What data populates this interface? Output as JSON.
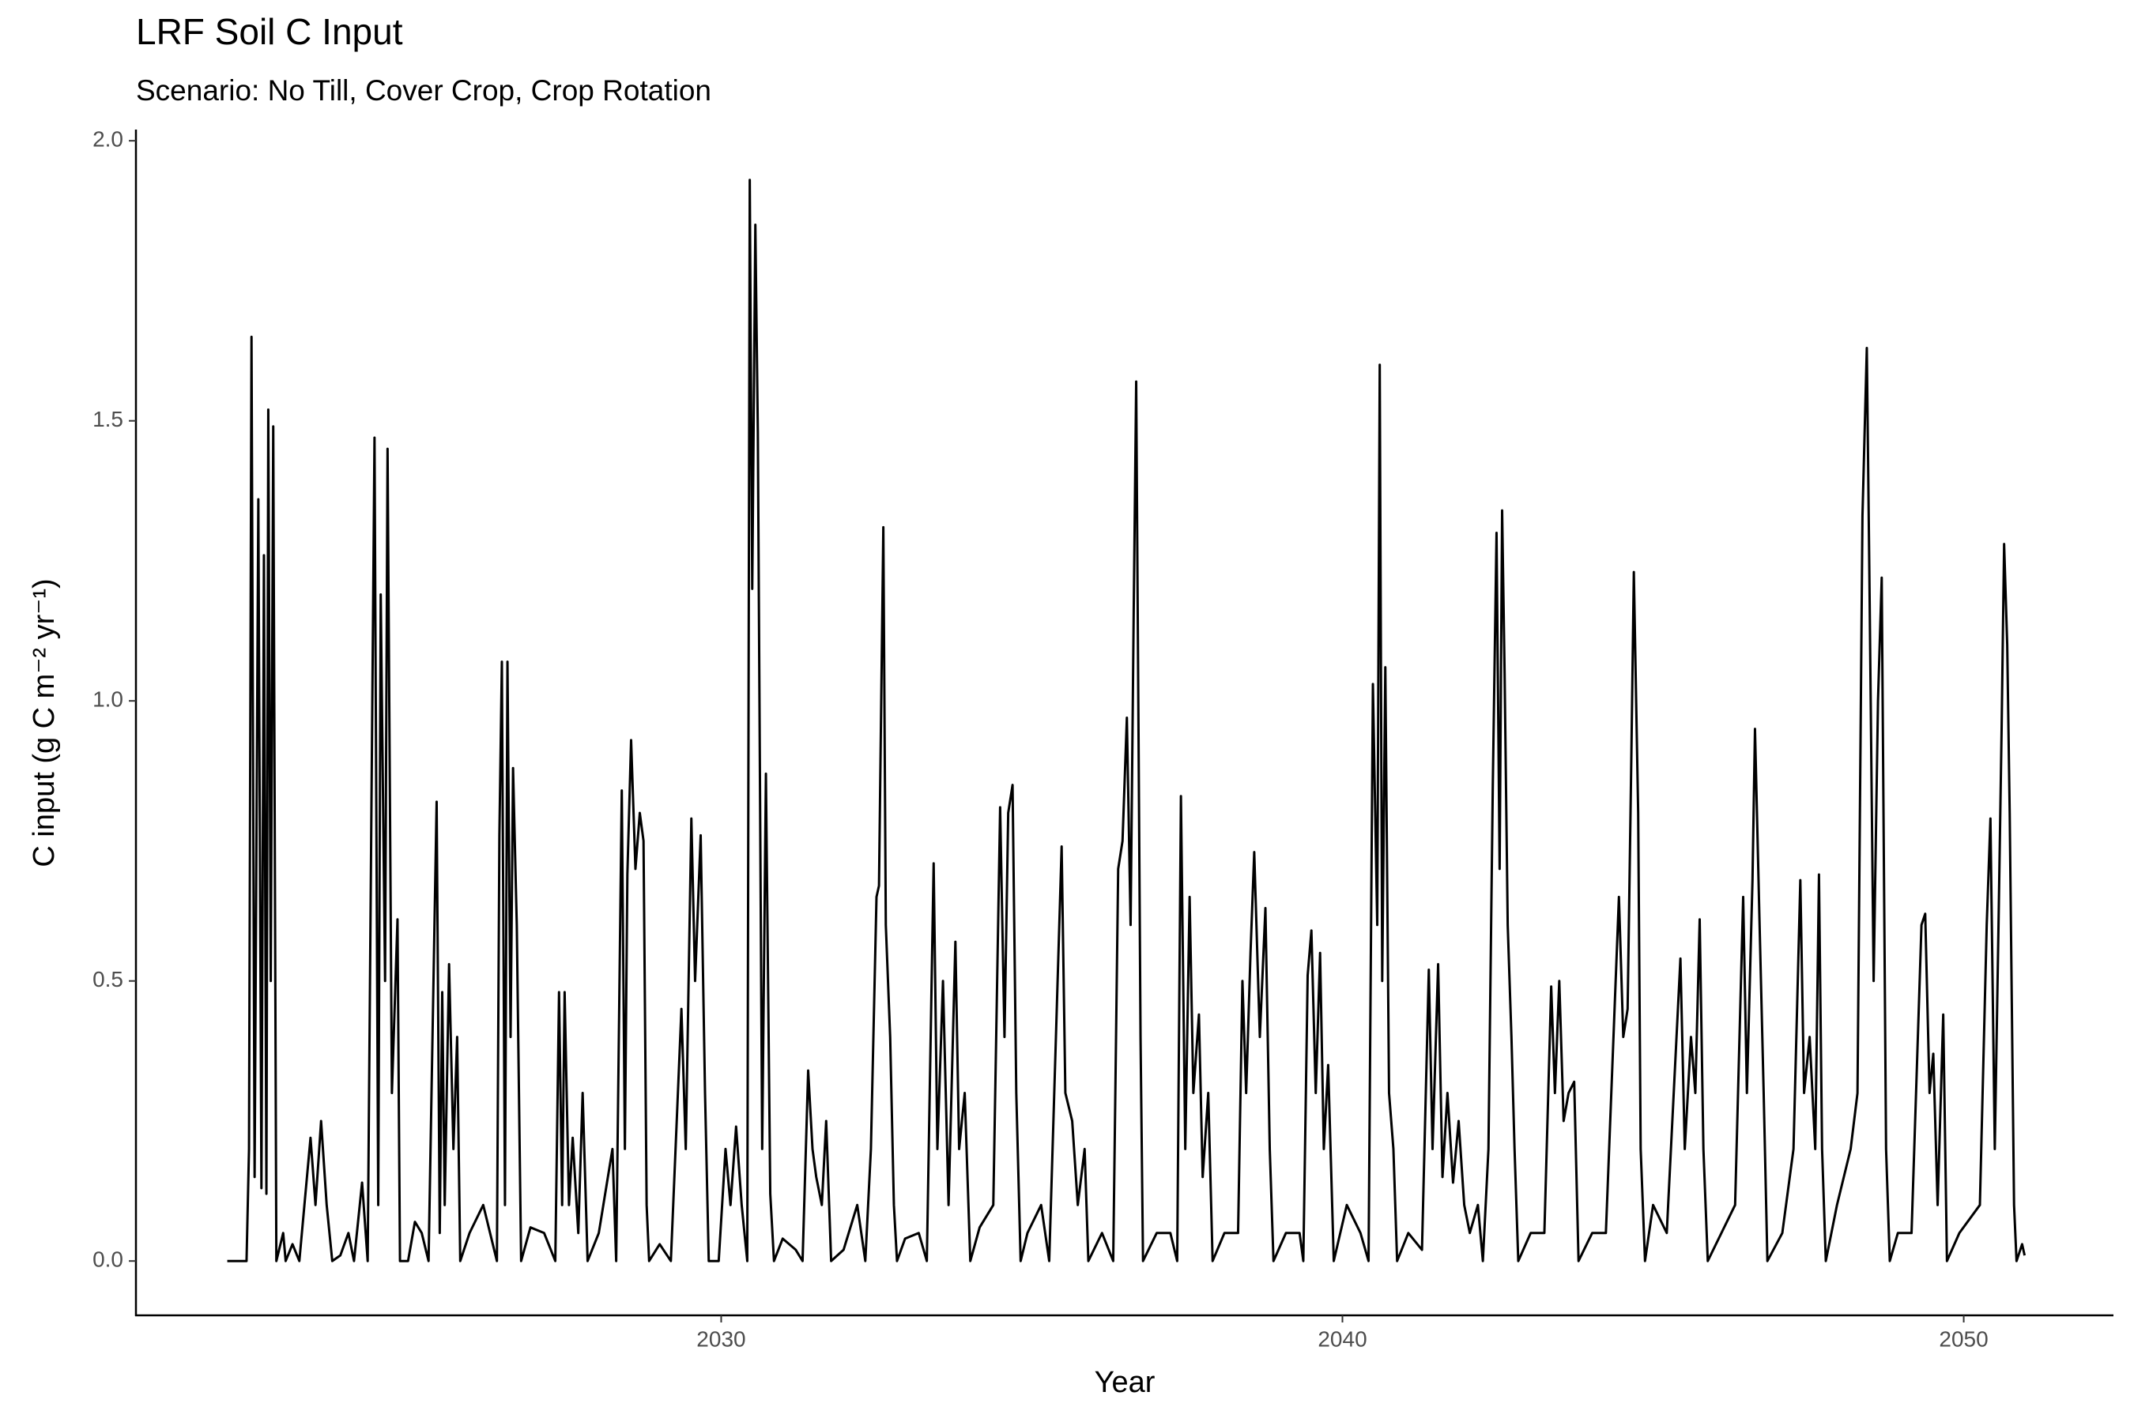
{
  "chart_data": {
    "type": "line",
    "title": "LRF Soil C Input",
    "subtitle": "Scenario: No Till, Cover Crop, Crop Rotation",
    "x_label": "Year",
    "y_label": "C input (g C m⁻² yr⁻¹)",
    "color": "#000000",
    "grid": false,
    "xlim": [
      2020.58,
      2052.41
    ],
    "ylim": [
      -0.097,
      2.02
    ],
    "xticks": [
      2030,
      2040,
      2050
    ],
    "yticks": [
      {
        "value": 0,
        "label": "0.0"
      },
      0.5,
      {
        "value": 1,
        "label": "1.0"
      },
      1.5,
      {
        "value": 2,
        "label": "2.0"
      }
    ],
    "x": [
      2022.05,
      2022.36,
      2022.4,
      2022.44,
      2022.49,
      2022.55,
      2022.6,
      2022.64,
      2022.68,
      2022.71,
      2022.75,
      2022.79,
      2022.84,
      2022.95,
      2022.99,
      2023.1,
      2023.21,
      2023.39,
      2023.47,
      2023.56,
      2023.65,
      2023.74,
      2023.87,
      2024.0,
      2024.09,
      2024.22,
      2024.31,
      2024.42,
      2024.48,
      2024.52,
      2024.59,
      2024.63,
      2024.7,
      2024.79,
      2024.83,
      2024.96,
      2025.07,
      2025.18,
      2025.29,
      2025.42,
      2025.47,
      2025.51,
      2025.55,
      2025.62,
      2025.69,
      2025.75,
      2025.8,
      2025.95,
      2026.17,
      2026.28,
      2026.39,
      2026.43,
      2026.47,
      2026.52,
      2026.56,
      2026.61,
      2026.65,
      2026.71,
      2026.78,
      2026.93,
      2027.15,
      2027.33,
      2027.39,
      2027.44,
      2027.48,
      2027.55,
      2027.61,
      2027.7,
      2027.77,
      2027.85,
      2028.03,
      2028.25,
      2028.31,
      2028.4,
      2028.45,
      2028.49,
      2028.55,
      2028.62,
      2028.69,
      2028.75,
      2028.8,
      2028.84,
      2029.01,
      2029.19,
      2029.36,
      2029.43,
      2029.52,
      2029.58,
      2029.67,
      2029.74,
      2029.8,
      2029.96,
      2030.07,
      2030.15,
      2030.24,
      2030.33,
      2030.42,
      2030.46,
      2030.5,
      2030.55,
      2030.59,
      2030.66,
      2030.72,
      2030.79,
      2030.85,
      2030.99,
      2031.2,
      2031.31,
      2031.4,
      2031.47,
      2031.53,
      2031.62,
      2031.69,
      2031.77,
      2031.97,
      2032.19,
      2032.32,
      2032.41,
      2032.5,
      2032.54,
      2032.61,
      2032.65,
      2032.72,
      2032.78,
      2032.83,
      2032.96,
      2033.18,
      2033.31,
      2033.42,
      2033.48,
      2033.57,
      2033.66,
      2033.77,
      2033.83,
      2033.92,
      2034.01,
      2034.16,
      2034.38,
      2034.49,
      2034.56,
      2034.62,
      2034.69,
      2034.75,
      2034.82,
      2034.93,
      2035.15,
      2035.28,
      2035.48,
      2035.54,
      2035.65,
      2035.74,
      2035.85,
      2035.91,
      2036.13,
      2036.31,
      2036.39,
      2036.46,
      2036.53,
      2036.59,
      2036.64,
      2036.68,
      2036.75,
      2036.79,
      2037.01,
      2037.23,
      2037.34,
      2037.4,
      2037.47,
      2037.54,
      2037.6,
      2037.69,
      2037.75,
      2037.84,
      2037.91,
      2038.1,
      2038.32,
      2038.39,
      2038.45,
      2038.52,
      2038.58,
      2038.67,
      2038.76,
      2038.83,
      2038.89,
      2039.09,
      2039.31,
      2039.37,
      2039.44,
      2039.5,
      2039.57,
      2039.64,
      2039.7,
      2039.77,
      2039.86,
      2040.07,
      2040.29,
      2040.42,
      2040.49,
      2040.56,
      2040.6,
      2040.64,
      2040.69,
      2040.75,
      2040.82,
      2040.88,
      2041.06,
      2041.28,
      2041.39,
      2041.45,
      2041.54,
      2041.61,
      2041.69,
      2041.78,
      2041.87,
      2041.96,
      2042.05,
      2042.18,
      2042.26,
      2042.35,
      2042.42,
      2042.48,
      2042.53,
      2042.57,
      2042.61,
      2042.66,
      2042.72,
      2042.77,
      2042.83,
      2043.03,
      2043.25,
      2043.36,
      2043.42,
      2043.49,
      2043.56,
      2043.64,
      2043.73,
      2043.8,
      2044.02,
      2044.24,
      2044.45,
      2044.52,
      2044.59,
      2044.65,
      2044.69,
      2044.76,
      2044.8,
      2044.87,
      2045.0,
      2045.22,
      2045.44,
      2045.51,
      2045.61,
      2045.68,
      2045.75,
      2045.81,
      2045.88,
      2046.1,
      2046.32,
      2046.45,
      2046.51,
      2046.6,
      2046.64,
      2046.71,
      2046.78,
      2046.84,
      2047.08,
      2047.26,
      2047.37,
      2047.43,
      2047.52,
      2047.61,
      2047.67,
      2047.72,
      2047.78,
      2047.96,
      2048.18,
      2048.29,
      2048.37,
      2048.44,
      2048.48,
      2048.55,
      2048.62,
      2048.68,
      2048.75,
      2048.81,
      2048.94,
      2049.16,
      2049.32,
      2049.38,
      2049.45,
      2049.51,
      2049.58,
      2049.67,
      2049.73,
      2049.93,
      2050.26,
      2050.37,
      2050.43,
      2050.5,
      2050.56,
      2050.61,
      2050.65,
      2050.7,
      2050.74,
      2050.81,
      2050.85,
      2050.94,
      2050.98
    ],
    "values": [
      0,
      0,
      0.2,
      1.65,
      0.15,
      1.36,
      0.13,
      1.26,
      0.12,
      1.52,
      0.5,
      1.49,
      0,
      0.05,
      0,
      0.03,
      0,
      0.22,
      0.1,
      0.25,
      0.1,
      0,
      0.01,
      0.05,
      0,
      0.14,
      0,
      1.47,
      0.1,
      1.19,
      0.5,
      1.45,
      0.3,
      0.61,
      0,
      0,
      0.07,
      0.05,
      0,
      0.82,
      0.05,
      0.48,
      0.1,
      0.53,
      0.2,
      0.4,
      0,
      0.05,
      0.1,
      0.05,
      0,
      0.76,
      1.07,
      0.1,
      1.07,
      0.4,
      0.88,
      0.6,
      0,
      0.06,
      0.05,
      0,
      0.48,
      0.1,
      0.48,
      0.1,
      0.22,
      0.05,
      0.3,
      0,
      0.05,
      0.2,
      0,
      0.84,
      0.2,
      0.69,
      0.93,
      0.7,
      0.8,
      0.75,
      0.1,
      0,
      0.03,
      0,
      0.45,
      0.2,
      0.79,
      0.5,
      0.76,
      0.3,
      0,
      0,
      0.2,
      0.1,
      0.24,
      0.1,
      0,
      1.93,
      1.2,
      1.85,
      1.48,
      0.2,
      0.87,
      0.12,
      0,
      0.04,
      0.02,
      0,
      0.34,
      0.2,
      0.15,
      0.1,
      0.25,
      0,
      0.02,
      0.1,
      0,
      0.2,
      0.65,
      0.67,
      1.31,
      0.6,
      0.4,
      0.1,
      0,
      0.04,
      0.05,
      0,
      0.71,
      0.2,
      0.5,
      0.1,
      0.57,
      0.2,
      0.3,
      0,
      0.06,
      0.1,
      0.81,
      0.4,
      0.8,
      0.85,
      0.3,
      0,
      0.05,
      0.1,
      0,
      0.74,
      0.3,
      0.25,
      0.1,
      0.2,
      0,
      0.05,
      0,
      0.7,
      0.75,
      0.97,
      0.6,
      1.16,
      1.57,
      0.4,
      0,
      0.05,
      0.05,
      0,
      0.83,
      0.2,
      0.65,
      0.3,
      0.44,
      0.15,
      0.3,
      0,
      0.05,
      0.05,
      0.5,
      0.3,
      0.55,
      0.73,
      0.4,
      0.63,
      0.2,
      0,
      0.05,
      0.05,
      0,
      0.51,
      0.59,
      0.3,
      0.55,
      0.2,
      0.35,
      0,
      0.1,
      0.05,
      0,
      1.03,
      0.6,
      1.6,
      0.5,
      1.06,
      0.3,
      0.2,
      0,
      0.05,
      0.02,
      0.52,
      0.2,
      0.53,
      0.15,
      0.3,
      0.14,
      0.25,
      0.1,
      0.05,
      0.1,
      0,
      0.2,
      0.85,
      1.3,
      0.7,
      1.34,
      1.05,
      0.6,
      0.4,
      0.2,
      0,
      0.05,
      0.05,
      0.49,
      0.3,
      0.5,
      0.25,
      0.3,
      0.32,
      0,
      0.05,
      0.05,
      0.65,
      0.4,
      0.45,
      0.9,
      1.23,
      0.8,
      0.2,
      0,
      0.1,
      0.05,
      0.54,
      0.2,
      0.4,
      0.3,
      0.61,
      0.2,
      0,
      0.05,
      0.1,
      0.65,
      0.3,
      0.68,
      0.95,
      0.62,
      0.3,
      0,
      0.05,
      0.2,
      0.68,
      0.3,
      0.4,
      0.2,
      0.69,
      0.2,
      0,
      0.1,
      0.2,
      0.3,
      1.33,
      1.63,
      1.24,
      0.5,
      1.0,
      1.22,
      0.2,
      0,
      0.05,
      0.05,
      0.6,
      0.62,
      0.3,
      0.37,
      0.1,
      0.44,
      0,
      0.05,
      0.1,
      0.6,
      0.79,
      0.2,
      0.6,
      0.95,
      1.28,
      1.1,
      0.8,
      0.1,
      0,
      0.03,
      0.01
    ]
  }
}
